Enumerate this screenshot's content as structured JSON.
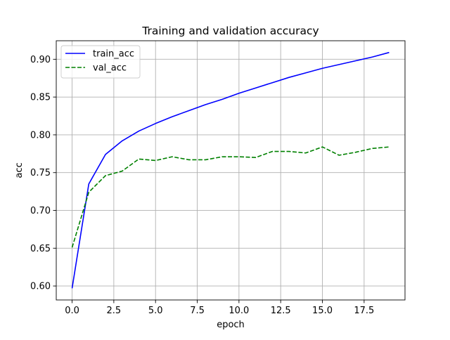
{
  "chart_data": {
    "type": "line",
    "title": "Training and validation accuracy",
    "xlabel": "epoch",
    "ylabel": "acc",
    "xlim": [
      -0.95,
      19.95
    ],
    "ylim": [
      0.5815,
      0.9245
    ],
    "xticks": [
      0.0,
      2.5,
      5.0,
      7.5,
      10.0,
      12.5,
      15.0,
      17.5
    ],
    "xtick_labels": [
      "0.0",
      "2.5",
      "5.0",
      "7.5",
      "10.0",
      "12.5",
      "15.0",
      "17.5"
    ],
    "yticks": [
      0.6,
      0.65,
      0.7,
      0.75,
      0.8,
      0.85,
      0.9
    ],
    "ytick_labels": [
      "0.60",
      "0.65",
      "0.70",
      "0.75",
      "0.80",
      "0.85",
      "0.90"
    ],
    "grid": true,
    "legend_position": "upper left",
    "x": [
      0,
      1,
      2,
      3,
      4,
      5,
      6,
      7,
      8,
      9,
      10,
      11,
      12,
      13,
      14,
      15,
      16,
      17,
      18,
      19
    ],
    "series": [
      {
        "name": "train_acc",
        "color": "#0000ff",
        "style": "solid",
        "values": [
          0.597,
          0.735,
          0.774,
          0.792,
          0.805,
          0.815,
          0.824,
          0.832,
          0.84,
          0.847,
          0.855,
          0.862,
          0.869,
          0.876,
          0.882,
          0.888,
          0.893,
          0.898,
          0.903,
          0.909
        ]
      },
      {
        "name": "val_acc",
        "color": "#008000",
        "style": "dashed",
        "values": [
          0.651,
          0.724,
          0.746,
          0.752,
          0.768,
          0.766,
          0.771,
          0.767,
          0.767,
          0.771,
          0.771,
          0.77,
          0.778,
          0.778,
          0.776,
          0.784,
          0.773,
          0.777,
          0.782,
          0.784
        ]
      }
    ]
  }
}
